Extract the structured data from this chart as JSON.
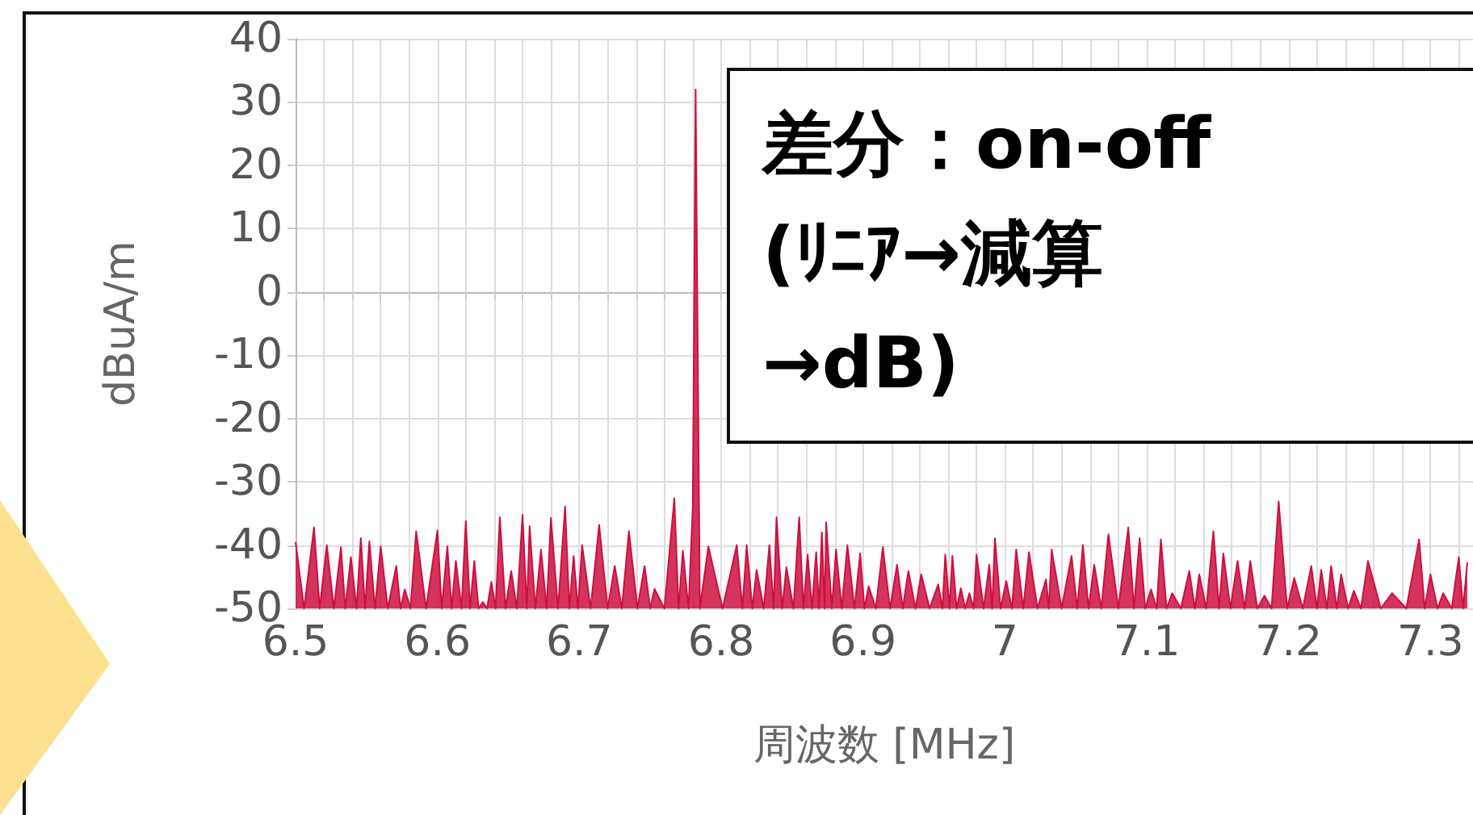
{
  "chart_data": {
    "type": "area",
    "xlabel": "周波数 [MHz]",
    "ylabel": "dBuA/m",
    "annotations": [
      "差分：on-off\n(ﾘﾆｱ→減算\n→dB)"
    ],
    "xlim": [
      6.5,
      7.33
    ],
    "xticks": [
      6.5,
      {
        "value": 6.52,
        "label": null
      },
      {
        "value": 6.54,
        "label": null
      },
      {
        "value": 6.56,
        "label": null
      },
      {
        "value": 6.58,
        "label": null
      },
      6.6,
      {
        "value": 6.62,
        "label": null
      },
      {
        "value": 6.64,
        "label": null
      },
      {
        "value": 6.66,
        "label": null
      },
      {
        "value": 6.68,
        "label": null
      },
      6.7,
      {
        "value": 6.72,
        "label": null
      },
      {
        "value": 6.74,
        "label": null
      },
      {
        "value": 6.76,
        "label": null
      },
      {
        "value": 6.78,
        "label": null
      },
      6.8,
      {
        "value": 6.82,
        "label": null
      },
      {
        "value": 6.84,
        "label": null
      },
      {
        "value": 6.86,
        "label": null
      },
      {
        "value": 6.88,
        "label": null
      },
      6.9,
      {
        "value": 6.92,
        "label": null
      },
      {
        "value": 6.94,
        "label": null
      },
      {
        "value": 6.96,
        "label": null
      },
      {
        "value": 6.98,
        "label": null
      },
      7,
      {
        "value": 7.02,
        "label": null
      },
      {
        "value": 7.04,
        "label": null
      },
      {
        "value": 7.06,
        "label": null
      },
      {
        "value": 7.08,
        "label": null
      },
      7.1,
      {
        "value": 7.12,
        "label": null
      },
      {
        "value": 7.14,
        "label": null
      },
      {
        "value": 7.16,
        "label": null
      },
      {
        "value": 7.18,
        "label": null
      },
      7.2,
      {
        "value": 7.22,
        "label": null
      },
      {
        "value": 7.24,
        "label": null
      },
      {
        "value": 7.26,
        "label": null
      },
      {
        "value": 7.28,
        "label": null
      },
      7.3,
      {
        "value": 7.32,
        "label": null
      }
    ],
    "ylim": [
      -50,
      40
    ],
    "yticks": [
      -50,
      -40,
      -30,
      -20,
      -10,
      0,
      10,
      20,
      30,
      40
    ],
    "grid": true,
    "marker": "none",
    "line_style": "solid",
    "series": [
      {
        "color": "#cc1040",
        "x": [
          6.5,
          6.506,
          6.513,
          6.517,
          6.522,
          6.527,
          6.532,
          6.535,
          6.539,
          6.543,
          6.546,
          6.549,
          6.552,
          6.556,
          6.56,
          6.565,
          6.571,
          6.574,
          6.577,
          6.581,
          6.585,
          6.592,
          6.6,
          6.603,
          6.607,
          6.61,
          6.613,
          6.617,
          6.62,
          6.623,
          6.626,
          6.629,
          6.632,
          6.635,
          6.638,
          6.641,
          6.644,
          6.648,
          6.652,
          6.656,
          6.66,
          6.663,
          6.665,
          6.669,
          6.673,
          6.677,
          6.68,
          6.685,
          6.69,
          6.693,
          6.696,
          6.699,
          6.702,
          6.708,
          6.714,
          6.72,
          6.725,
          6.73,
          6.735,
          6.741,
          6.746,
          6.75,
          6.753,
          6.76,
          6.767,
          6.77,
          6.773,
          6.777,
          6.78,
          6.782,
          6.785,
          6.791,
          6.801,
          6.811,
          6.815,
          6.818,
          6.822,
          6.825,
          6.83,
          6.834,
          6.837,
          6.839,
          6.843,
          6.846,
          6.851,
          6.855,
          6.858,
          6.861,
          6.864,
          6.867,
          6.869,
          6.871,
          6.873,
          6.874,
          6.878,
          6.881,
          6.885,
          6.889,
          6.894,
          6.898,
          6.901,
          6.904,
          6.909,
          6.914,
          6.919,
          6.924,
          6.928,
          6.932,
          6.937,
          6.941,
          6.947,
          6.953,
          6.956,
          6.958,
          6.961,
          6.963,
          6.966,
          6.969,
          6.972,
          6.975,
          6.978,
          6.98,
          6.985,
          6.989,
          6.991,
          6.993,
          6.997,
          7.001,
          7.005,
          7.008,
          7.013,
          7.017,
          7.023,
          7.029,
          7.031,
          7.033,
          7.04,
          7.047,
          7.051,
          7.055,
          7.059,
          7.063,
          7.068,
          7.073,
          7.08,
          7.087,
          7.091,
          7.095,
          7.099,
          7.103,
          7.107,
          7.11,
          7.114,
          7.118,
          7.124,
          7.13,
          7.134,
          7.137,
          7.142,
          7.147,
          7.151,
          7.154,
          7.159,
          7.164,
          7.169,
          7.173,
          7.178,
          7.183,
          7.188,
          7.193,
          7.199,
          7.204,
          7.21,
          7.216,
          7.22,
          7.223,
          7.227,
          7.23,
          7.234,
          7.237,
          7.242,
          7.246,
          7.251,
          7.256,
          7.265,
          7.273,
          7.283,
          7.292,
          7.296,
          7.3,
          7.305,
          7.309,
          7.315,
          7.32,
          7.323,
          7.326
        ],
        "values": [
          -39.5,
          -50,
          -37.2,
          -50,
          -40,
          -50,
          -40.3,
          -50,
          -41.9,
          -50,
          -38.9,
          -50,
          -39.4,
          -50,
          -40.2,
          -50,
          -43.3,
          -50,
          -47,
          -50,
          -37.8,
          -50,
          -37.7,
          -50,
          -40.2,
          -50,
          -42.5,
          -50,
          -36.2,
          -50,
          -42.5,
          -50,
          -49,
          -50,
          -45.8,
          -50,
          -35.6,
          -50,
          -44.1,
          -50,
          -35.2,
          -50,
          -37,
          -50,
          -40.7,
          -50,
          -35.7,
          -50,
          -33.9,
          -50,
          -41.7,
          -50,
          -40,
          -50,
          -36.8,
          -50,
          -43.3,
          -50,
          -37.8,
          -50,
          -43.3,
          -50,
          -46.9,
          -50,
          -32.6,
          -50,
          -40.9,
          -50,
          -34,
          32,
          -50,
          -40.2,
          -50,
          -40,
          -50,
          -40,
          -50,
          -43.9,
          -50,
          -40,
          -50,
          -35.6,
          -50,
          -43.5,
          -50,
          -35.6,
          -50,
          -41.5,
          -50,
          -41.1,
          -50,
          -38,
          -50,
          -36.4,
          -50,
          -40.7,
          -50,
          -40,
          -50,
          -41.3,
          -50,
          -46.5,
          -50,
          -40.3,
          -50,
          -43.1,
          -50,
          -44.1,
          -50,
          -44.6,
          -50,
          -46.2,
          -50,
          -41.5,
          -50,
          -41.7,
          -50,
          -46.8,
          -50,
          -47.6,
          -50,
          -41.5,
          -50,
          -43.1,
          -50,
          -38.9,
          -50,
          -45.7,
          -50,
          -40.7,
          -50,
          -41.1,
          -50,
          -45.4,
          -50,
          -40.7,
          -50,
          -41.7,
          -50,
          -40,
          -50,
          -43.1,
          -50,
          -38.3,
          -50,
          -37.2,
          -50,
          -38.9,
          -50,
          -47,
          -50,
          -39.1,
          -50,
          -47.6,
          -50,
          -44.1,
          -50,
          -44.6,
          -50,
          -37.8,
          -50,
          -41.3,
          -50,
          -42.5,
          -50,
          -42.5,
          -50,
          -48,
          -50,
          -33.1,
          -50,
          -45.2,
          -50,
          -43.3,
          -50,
          -43.9,
          -50,
          -43.3,
          -50,
          -44.6,
          -50,
          -47.2,
          -50,
          -42.5,
          -50,
          -47.6,
          -50,
          -39.1,
          -50,
          -44.6,
          -50,
          -47.6,
          -50,
          -41.9,
          -50,
          -42.7
        ]
      }
    ]
  }
}
